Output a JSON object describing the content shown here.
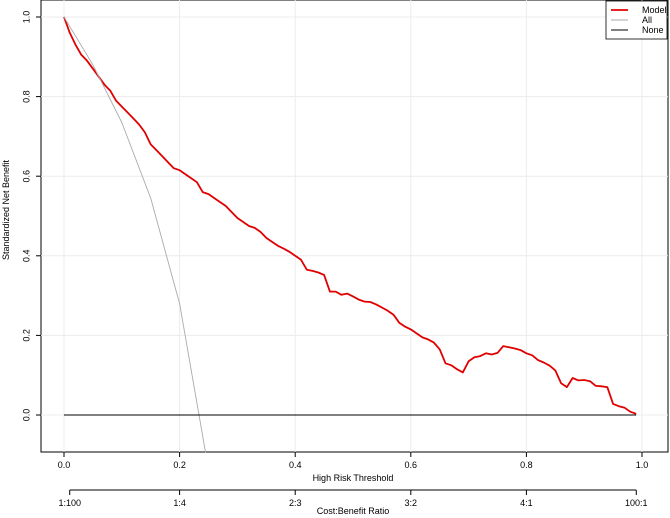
{
  "chart_data": {
    "type": "line",
    "title": "",
    "xlabel": "High Risk Threshold",
    "ylabel": "Standardized Net Benefit",
    "xlim": [
      0.0,
      1.0
    ],
    "ylim": [
      -0.1,
      1.0
    ],
    "xticks": [
      "0.0",
      "0.2",
      "0.4",
      "0.6",
      "0.8",
      "1.0"
    ],
    "xtick_values": [
      0.0,
      0.2,
      0.4,
      0.6,
      0.8,
      1.0
    ],
    "yticks": [
      "0.0",
      "0.2",
      "0.4",
      "0.6",
      "0.8",
      "1.0"
    ],
    "ytick_values": [
      0.0,
      0.2,
      0.4,
      0.6,
      0.8,
      1.0
    ],
    "grid": true,
    "legend_position": "top-right",
    "secondary_axis": {
      "label": "Cost:Benefit Ratio",
      "ticks": [
        "1:100",
        "1:4",
        "2:3",
        "3:2",
        "4:1",
        "100:1"
      ],
      "tick_values": [
        0.0099,
        0.2,
        0.4,
        0.6,
        0.8,
        0.9901
      ]
    },
    "series": [
      {
        "name": "Model",
        "color": "#e00000",
        "points": [
          [
            0.0,
            1.0
          ],
          [
            0.01,
            0.96
          ],
          [
            0.02,
            0.93
          ],
          [
            0.03,
            0.905
          ],
          [
            0.04,
            0.89
          ],
          [
            0.05,
            0.87
          ],
          [
            0.06,
            0.85
          ],
          [
            0.07,
            0.83
          ],
          [
            0.08,
            0.815
          ],
          [
            0.09,
            0.79
          ],
          [
            0.1,
            0.775
          ],
          [
            0.11,
            0.76
          ],
          [
            0.12,
            0.745
          ],
          [
            0.13,
            0.73
          ],
          [
            0.14,
            0.71
          ],
          [
            0.15,
            0.68
          ],
          [
            0.16,
            0.665
          ],
          [
            0.17,
            0.65
          ],
          [
            0.18,
            0.635
          ],
          [
            0.19,
            0.62
          ],
          [
            0.2,
            0.615
          ],
          [
            0.21,
            0.605
          ],
          [
            0.22,
            0.595
          ],
          [
            0.23,
            0.585
          ],
          [
            0.24,
            0.56
          ],
          [
            0.25,
            0.555
          ],
          [
            0.26,
            0.545
          ],
          [
            0.27,
            0.535
          ],
          [
            0.28,
            0.525
          ],
          [
            0.29,
            0.51
          ],
          [
            0.3,
            0.495
          ],
          [
            0.31,
            0.485
          ],
          [
            0.32,
            0.475
          ],
          [
            0.33,
            0.47
          ],
          [
            0.34,
            0.46
          ],
          [
            0.35,
            0.445
          ],
          [
            0.36,
            0.435
          ],
          [
            0.37,
            0.425
          ],
          [
            0.38,
            0.418
          ],
          [
            0.39,
            0.41
          ],
          [
            0.4,
            0.4
          ],
          [
            0.41,
            0.39
          ],
          [
            0.42,
            0.365
          ],
          [
            0.43,
            0.362
          ],
          [
            0.44,
            0.358
          ],
          [
            0.45,
            0.352
          ],
          [
            0.46,
            0.31
          ],
          [
            0.47,
            0.31
          ],
          [
            0.48,
            0.302
          ],
          [
            0.49,
            0.305
          ],
          [
            0.5,
            0.298
          ],
          [
            0.51,
            0.29
          ],
          [
            0.52,
            0.285
          ],
          [
            0.53,
            0.284
          ],
          [
            0.54,
            0.278
          ],
          [
            0.55,
            0.27
          ],
          [
            0.56,
            0.262
          ],
          [
            0.57,
            0.252
          ],
          [
            0.58,
            0.232
          ],
          [
            0.59,
            0.222
          ],
          [
            0.6,
            0.215
          ],
          [
            0.61,
            0.205
          ],
          [
            0.62,
            0.195
          ],
          [
            0.63,
            0.19
          ],
          [
            0.64,
            0.182
          ],
          [
            0.65,
            0.165
          ],
          [
            0.66,
            0.13
          ],
          [
            0.67,
            0.125
          ],
          [
            0.68,
            0.115
          ],
          [
            0.69,
            0.107
          ],
          [
            0.7,
            0.135
          ],
          [
            0.71,
            0.145
          ],
          [
            0.72,
            0.148
          ],
          [
            0.73,
            0.155
          ],
          [
            0.74,
            0.152
          ],
          [
            0.75,
            0.156
          ],
          [
            0.76,
            0.173
          ],
          [
            0.77,
            0.17
          ],
          [
            0.78,
            0.167
          ],
          [
            0.79,
            0.163
          ],
          [
            0.8,
            0.155
          ],
          [
            0.81,
            0.15
          ],
          [
            0.82,
            0.138
          ],
          [
            0.83,
            0.132
          ],
          [
            0.84,
            0.124
          ],
          [
            0.85,
            0.112
          ],
          [
            0.86,
            0.08
          ],
          [
            0.87,
            0.07
          ],
          [
            0.88,
            0.093
          ],
          [
            0.89,
            0.087
          ],
          [
            0.9,
            0.088
          ],
          [
            0.91,
            0.085
          ],
          [
            0.92,
            0.073
          ],
          [
            0.93,
            0.072
          ],
          [
            0.94,
            0.07
          ],
          [
            0.95,
            0.028
          ],
          [
            0.96,
            0.022
          ],
          [
            0.97,
            0.018
          ],
          [
            0.98,
            0.008
          ],
          [
            0.99,
            0.003
          ]
        ]
      },
      {
        "name": "All",
        "color": "#aaaaaa",
        "points": [
          [
            0.0,
            1.0
          ],
          [
            0.05,
            0.88
          ],
          [
            0.1,
            0.735
          ],
          [
            0.15,
            0.545
          ],
          [
            0.2,
            0.28
          ],
          [
            0.245,
            -0.095
          ]
        ]
      },
      {
        "name": "None",
        "color": "#000000",
        "points": [
          [
            0.0,
            0.0
          ],
          [
            0.99,
            0.0
          ]
        ]
      }
    ]
  }
}
